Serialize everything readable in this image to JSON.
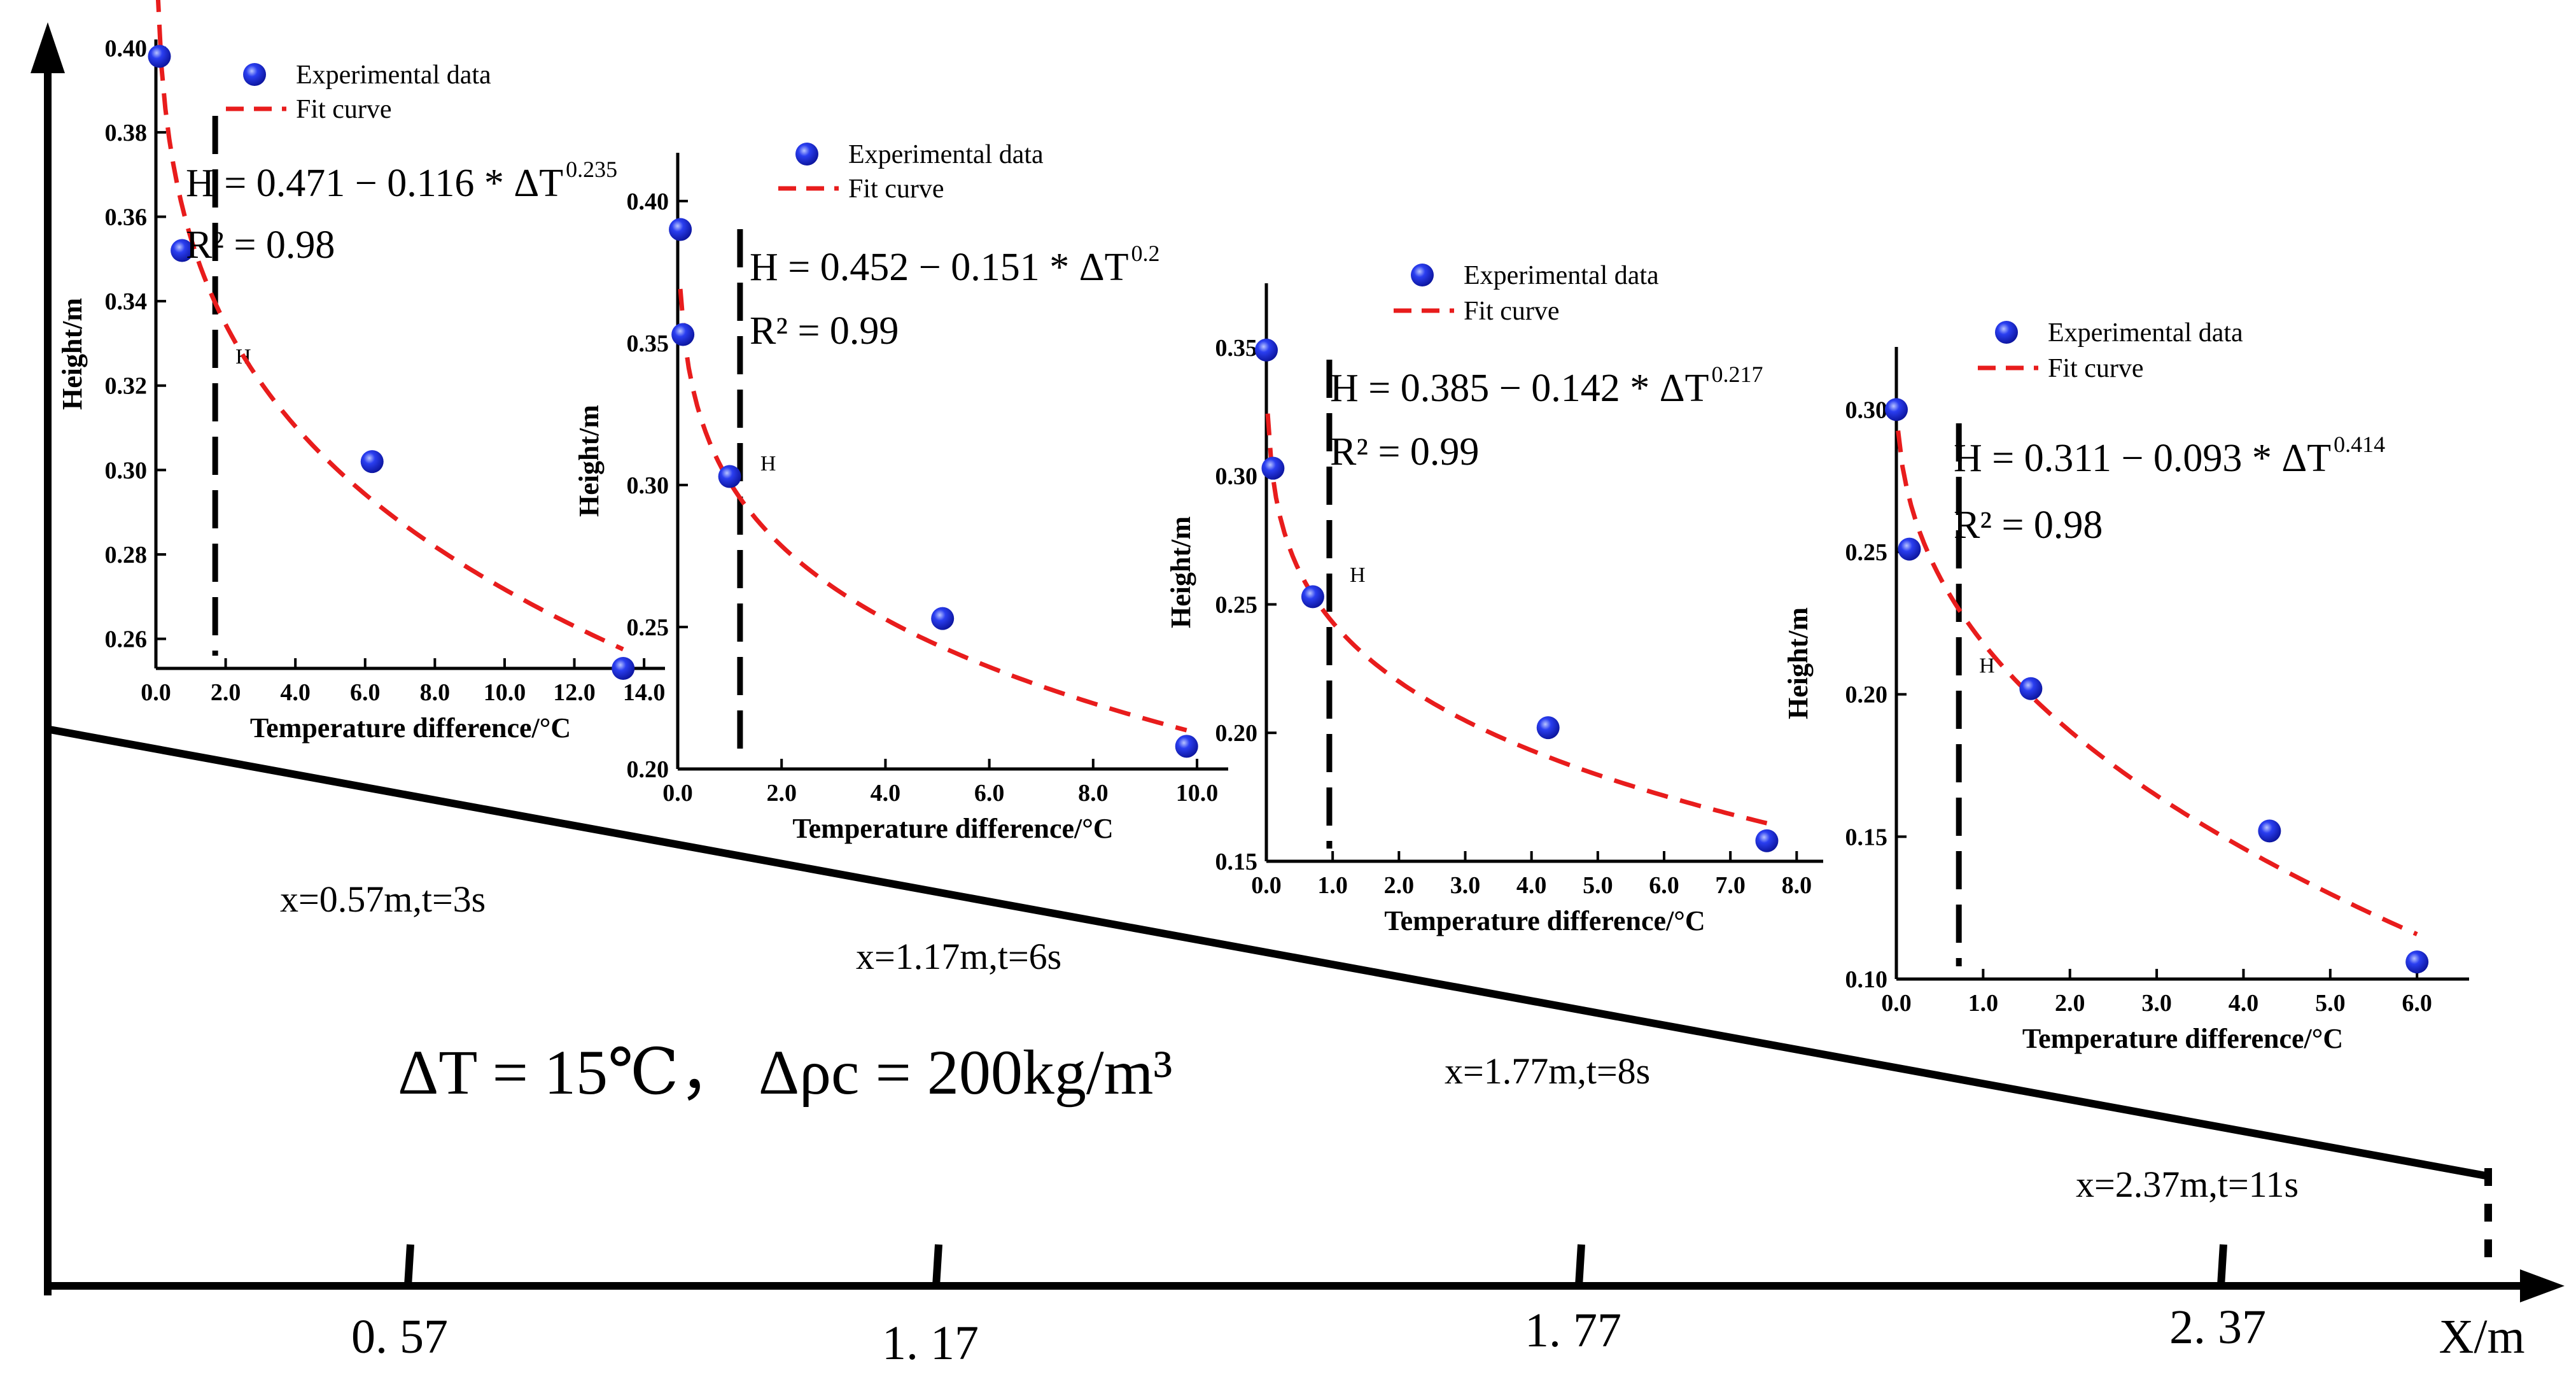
{
  "main_axis": {
    "x_label": "X/m",
    "ticks": [
      "0. 57",
      "1. 17",
      "1. 77",
      "2. 37"
    ]
  },
  "condition_text": "ΔT = 15℃， Δρc = 200kg/m³",
  "positions": [
    "x=0.57m,t=3s",
    "x=1.17m,t=6s",
    "x=1.77m,t=8s",
    "x=2.37m,t=11s"
  ],
  "chart_data": [
    {
      "type": "scatter",
      "title": "",
      "xlabel": "Temperature difference/°C",
      "ylabel": "Height/m",
      "xlim": [
        0,
        14.6
      ],
      "ylim": [
        0.253,
        0.402
      ],
      "xticks": [
        0,
        2,
        4,
        6,
        8,
        10,
        12,
        14
      ],
      "xtick_labels": [
        "0.0",
        "2.0",
        "4.0",
        "6.0",
        "8.0",
        "10.0",
        "12.0",
        "14.0"
      ],
      "yticks": [
        0.26,
        0.28,
        0.3,
        0.32,
        0.34,
        0.36,
        0.38,
        0.4
      ],
      "ytick_labels": [
        "0.26",
        "0.28",
        "0.30",
        "0.32",
        "0.34",
        "0.36",
        "0.38",
        "0.40"
      ],
      "series": [
        {
          "name": "Experimental data",
          "x": [
            0.1,
            0.75,
            6.2,
            13.4
          ],
          "y": [
            0.398,
            0.352,
            0.302,
            0.253
          ]
        },
        {
          "name": "Fit curve",
          "fit": {
            "a": 0.471,
            "b": 0.116,
            "c": 0.235,
            "x_start": 0.05,
            "x_end": 13.4
          }
        }
      ],
      "equation_text": "H = 0.471 − 0.116 * ΔT",
      "equation_exp": "0.235",
      "r2_text": "R² = 0.98",
      "marker_label": "H",
      "marker_x": 1.7
    },
    {
      "type": "scatter",
      "title": "",
      "xlabel": "Temperature difference/°C",
      "ylabel": "Height/m",
      "xlim": [
        0,
        10.6
      ],
      "ylim": [
        0.2,
        0.417
      ],
      "xticks": [
        0,
        2,
        4,
        6,
        8,
        10
      ],
      "xtick_labels": [
        "0.0",
        "2.0",
        "4.0",
        "6.0",
        "8.0",
        "10.0"
      ],
      "yticks": [
        0.2,
        0.25,
        0.3,
        0.35,
        0.4
      ],
      "ytick_labels": [
        "0.20",
        "0.25",
        "0.30",
        "0.35",
        "0.40"
      ],
      "series": [
        {
          "name": "Experimental data",
          "x": [
            0.05,
            0.1,
            1.0,
            5.1,
            9.8
          ],
          "y": [
            0.39,
            0.353,
            0.303,
            0.253,
            0.208
          ]
        },
        {
          "name": "Fit curve",
          "fit": {
            "a": 0.452,
            "b": 0.151,
            "c": 0.2,
            "x_start": 0.05,
            "x_end": 9.8
          }
        }
      ],
      "equation_text": "H = 0.452 − 0.151 * ΔT",
      "equation_exp": "0.2",
      "r2_text": "R² = 0.99",
      "marker_label": "H",
      "marker_x": 1.2
    },
    {
      "type": "scatter",
      "title": "",
      "xlabel": "Temperature difference/°C",
      "ylabel": "Height/m",
      "xlim": [
        0,
        8.4
      ],
      "ylim": [
        0.15,
        0.375
      ],
      "xticks": [
        0,
        1,
        2,
        3,
        4,
        5,
        6,
        7,
        8
      ],
      "xtick_labels": [
        "0.0",
        "1.0",
        "2.0",
        "3.0",
        "4.0",
        "5.0",
        "6.0",
        "7.0",
        "8.0"
      ],
      "yticks": [
        0.15,
        0.2,
        0.25,
        0.3,
        0.35
      ],
      "ytick_labels": [
        "0.15",
        "0.20",
        "0.25",
        "0.30",
        "0.35"
      ],
      "series": [
        {
          "name": "Experimental data",
          "x": [
            0.0,
            0.1,
            0.7,
            4.25,
            7.55
          ],
          "y": [
            0.349,
            0.303,
            0.253,
            0.202,
            0.158
          ]
        },
        {
          "name": "Fit curve",
          "fit": {
            "a": 0.385,
            "b": 0.142,
            "c": 0.217,
            "x_start": 0.02,
            "x_end": 7.55
          }
        }
      ],
      "equation_text": "H = 0.385 − 0.142 * ΔT",
      "equation_exp": "0.217",
      "r2_text": "R² = 0.99",
      "marker_label": "H",
      "marker_x": 0.95
    },
    {
      "type": "scatter",
      "title": "",
      "xlabel": "Temperature difference/°C",
      "ylabel": "Height/m",
      "xlim": [
        0,
        6.6
      ],
      "ylim": [
        0.1,
        0.322
      ],
      "xticks": [
        0,
        1,
        2,
        3,
        4,
        5,
        6
      ],
      "xtick_labels": [
        "0.0",
        "1.0",
        "2.0",
        "3.0",
        "4.0",
        "5.0",
        "6.0"
      ],
      "yticks": [
        0.1,
        0.15,
        0.2,
        0.25,
        0.3
      ],
      "ytick_labels": [
        "0.10",
        "0.15",
        "0.20",
        "0.25",
        "0.30"
      ],
      "series": [
        {
          "name": "Experimental data",
          "x": [
            0.0,
            0.15,
            1.55,
            4.3,
            6.0
          ],
          "y": [
            0.3,
            0.251,
            0.202,
            0.152,
            0.106
          ]
        },
        {
          "name": "Fit curve",
          "fit": {
            "a": 0.311,
            "b": 0.093,
            "c": 0.414,
            "x_start": 0.02,
            "x_end": 6.0
          }
        }
      ],
      "equation_text": "H = 0.311 − 0.093 * ΔT",
      "equation_exp": "0.414",
      "r2_text": "R² = 0.98",
      "marker_label": "H",
      "marker_x": 0.72
    }
  ],
  "colors": {
    "axis": "#000000",
    "point": "#1a2ee8",
    "point_highlight": "#9fb0ff",
    "fit": "#e81c1c",
    "marker": "#000000"
  }
}
